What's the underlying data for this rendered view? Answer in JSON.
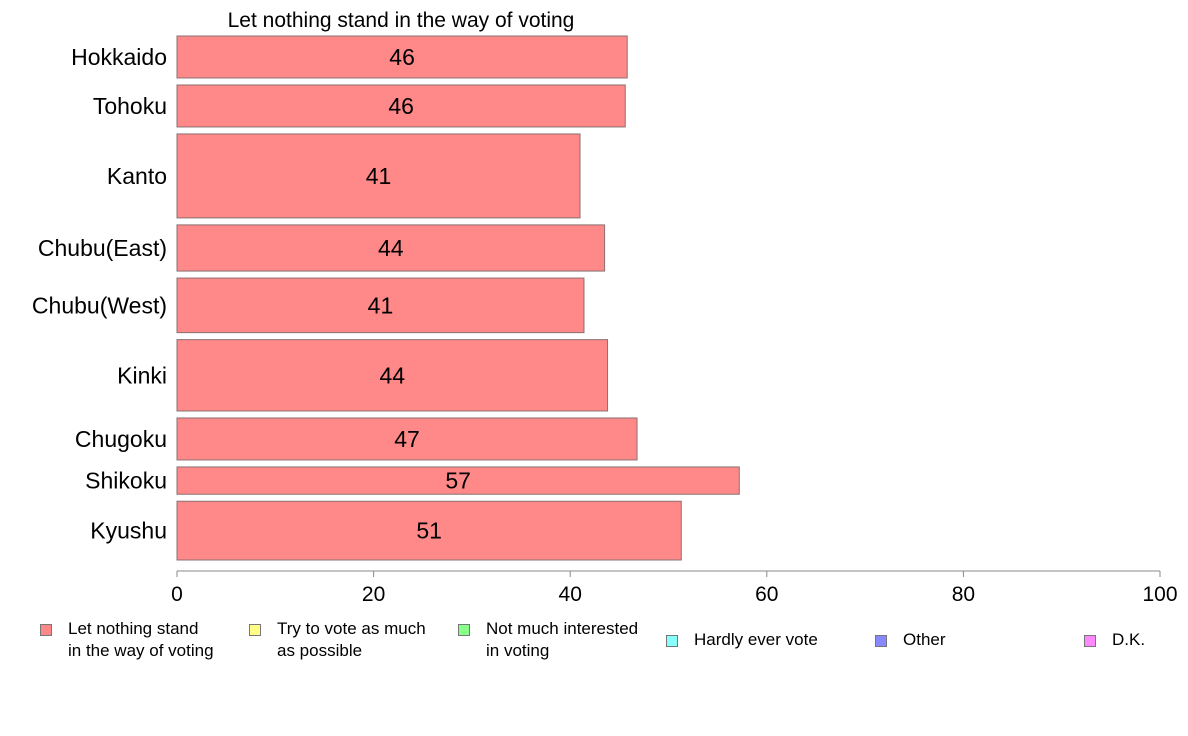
{
  "chart_data": {
    "type": "bar",
    "orientation": "horizontal",
    "title": "Let nothing stand in the way of voting",
    "categories": [
      "Hokkaido",
      "Tohoku",
      "Kanto",
      "Chubu(East)",
      "Chubu(West)",
      "Kinki",
      "Chugoku",
      "Shikoku",
      "Kyushu"
    ],
    "series": [
      {
        "name": "Let nothing stand in the way of voting",
        "values": [
          45.8,
          45.6,
          41.0,
          43.5,
          41.4,
          43.8,
          46.8,
          57.2,
          51.3
        ],
        "data_labels": [
          "46",
          "46",
          "41",
          "44",
          "41",
          "44",
          "47",
          "57",
          "51"
        ],
        "color": "#ff8888"
      }
    ],
    "bar_weights": [
      1,
      1,
      2,
      1.1,
      1.3,
      1.7,
      1,
      0.65,
      1.4
    ],
    "xlim": [
      0,
      100
    ],
    "xticks": [
      "0",
      "20",
      "40",
      "60",
      "80",
      "100"
    ],
    "grid": false,
    "legend_position": "bottom"
  },
  "legend": {
    "items": [
      {
        "label": "Let nothing stand\nin the way of voting",
        "color": "#ff8888"
      },
      {
        "label": "Try to vote as much\nas possible",
        "color": "#ffff88"
      },
      {
        "label": "Not much interested\nin voting",
        "color": "#88ff88"
      },
      {
        "label": "Hardly ever vote",
        "color": "#88ffff"
      },
      {
        "label": "Other",
        "color": "#8888ff"
      },
      {
        "label": "D.K.",
        "color": "#ff88ff"
      }
    ]
  }
}
